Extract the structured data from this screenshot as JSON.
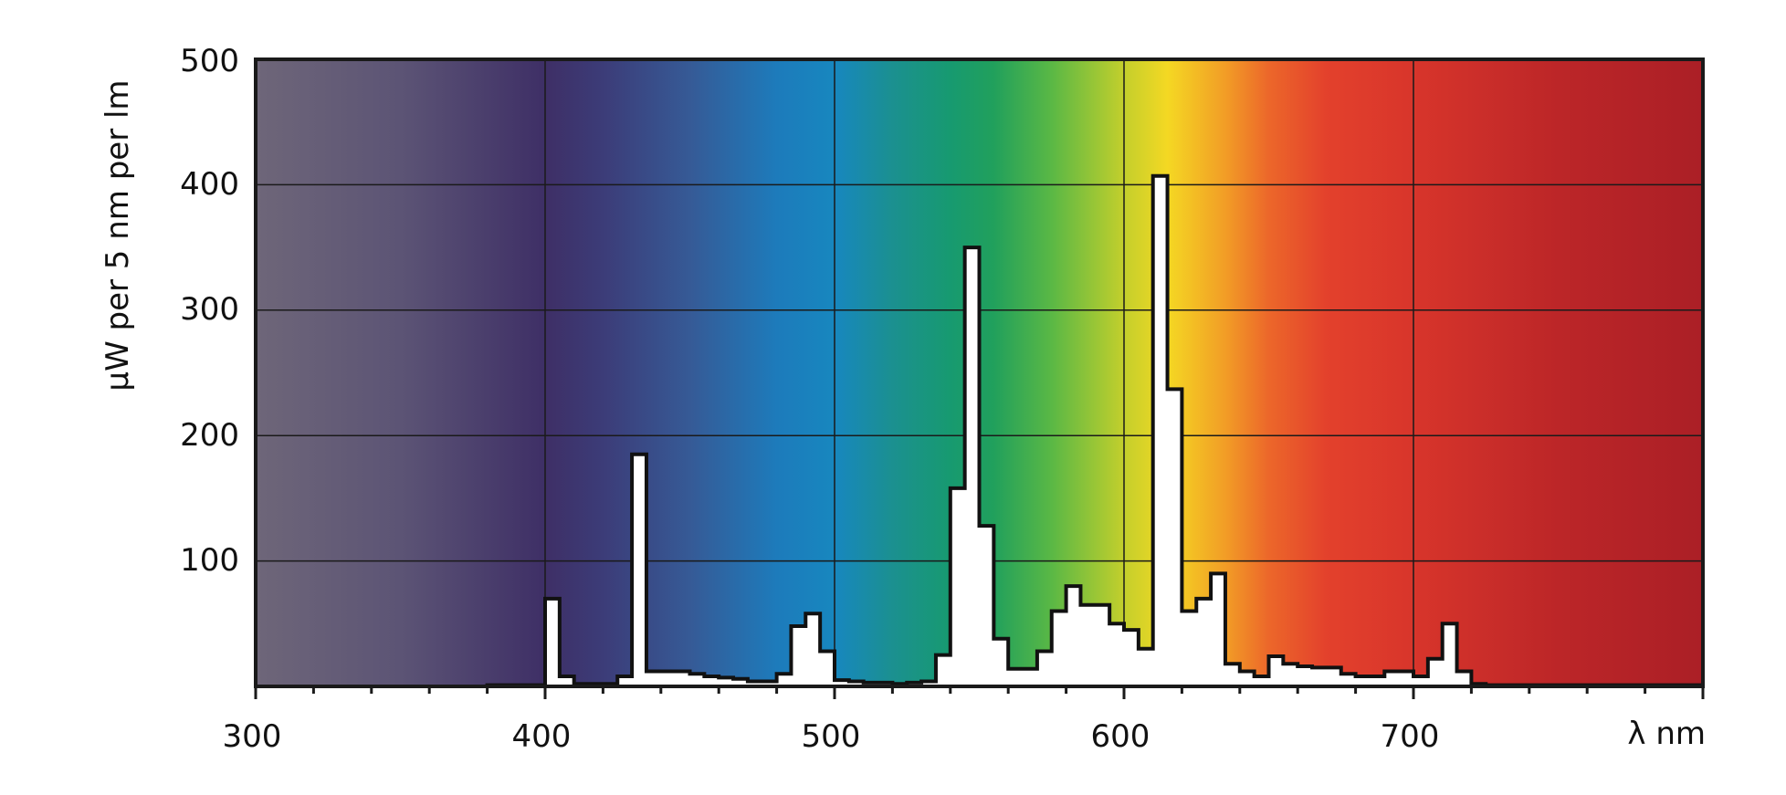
{
  "chart_data": {
    "type": "area",
    "xlabel": "λ nm",
    "ylabel": "µW per 5 nm per lm",
    "xlim": [
      300,
      800
    ],
    "ylim": [
      0,
      500
    ],
    "x_ticks": [
      "300",
      "400",
      "500",
      "600",
      "700"
    ],
    "y_ticks": [
      "100",
      "200",
      "300",
      "400",
      "500"
    ],
    "grid": true,
    "background": "visible-spectrum gradient",
    "series": [
      {
        "style": "step histogram, 5 nm bins",
        "fill": "#ffffff",
        "stroke": "#111111",
        "x": [
          300,
          305,
          310,
          315,
          320,
          325,
          330,
          335,
          340,
          345,
          350,
          355,
          360,
          365,
          370,
          375,
          380,
          385,
          390,
          395,
          400,
          405,
          410,
          415,
          420,
          425,
          430,
          435,
          440,
          445,
          450,
          455,
          460,
          465,
          470,
          475,
          480,
          485,
          490,
          495,
          500,
          505,
          510,
          515,
          520,
          525,
          530,
          535,
          540,
          545,
          550,
          555,
          560,
          565,
          570,
          575,
          580,
          585,
          590,
          595,
          600,
          605,
          610,
          615,
          620,
          625,
          630,
          635,
          640,
          645,
          650,
          655,
          660,
          665,
          670,
          675,
          680,
          685,
          690,
          695,
          700,
          705,
          710,
          715,
          720,
          725,
          730,
          735,
          740,
          745,
          750,
          755,
          760,
          765,
          770,
          775,
          780,
          785,
          790,
          795
        ],
        "values": [
          0,
          0,
          0,
          0,
          0,
          0,
          0,
          0,
          0,
          0,
          0,
          0,
          0,
          0,
          0,
          0,
          1,
          1,
          1,
          1,
          70,
          8,
          2,
          2,
          2,
          8,
          185,
          12,
          12,
          12,
          10,
          8,
          7,
          6,
          4,
          4,
          10,
          48,
          58,
          28,
          5,
          4,
          3,
          3,
          2,
          3,
          4,
          25,
          158,
          350,
          128,
          38,
          14,
          14,
          28,
          60,
          80,
          65,
          65,
          50,
          45,
          30,
          407,
          237,
          60,
          70,
          90,
          18,
          12,
          8,
          24,
          18,
          16,
          15,
          15,
          10,
          8,
          8,
          12,
          12,
          8,
          22,
          50,
          12,
          2,
          1,
          1,
          1,
          1,
          1,
          1,
          1,
          1,
          1,
          1,
          1,
          1,
          1,
          1,
          1
        ]
      }
    ]
  }
}
